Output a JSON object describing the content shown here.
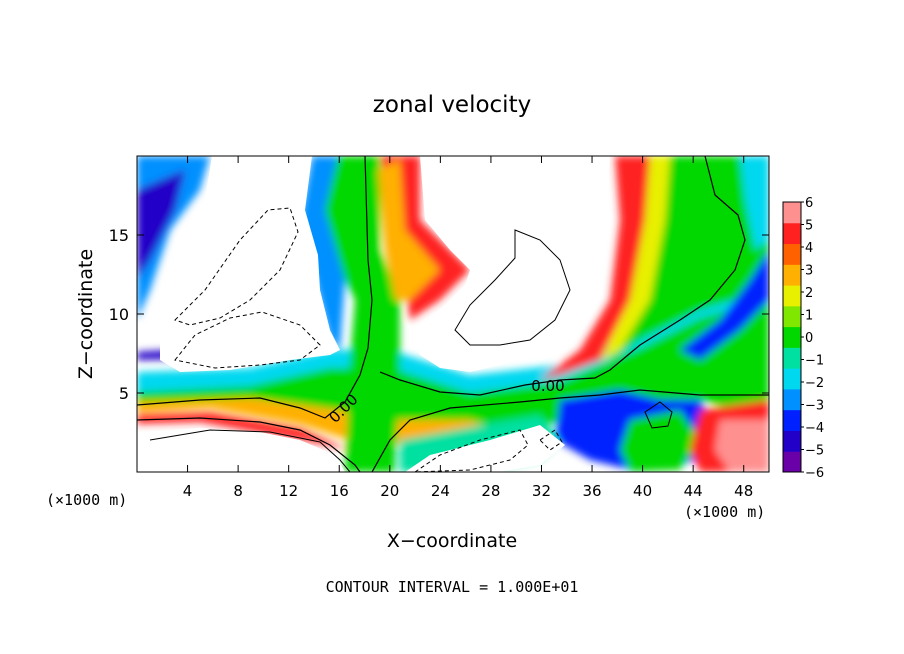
{
  "chart_data": {
    "type": "heatmap",
    "title": "zonal velocity",
    "xlabel": "X−coordinate",
    "ylabel": "Z−coordinate",
    "x_unit_left": "(×1000 m)",
    "x_unit_right": "(×1000 m)",
    "xlim": [
      0,
      50
    ],
    "ylim": [
      0,
      20
    ],
    "x_ticks": [
      4,
      8,
      12,
      16,
      20,
      24,
      28,
      32,
      36,
      40,
      44,
      48
    ],
    "x_tick_labels": [
      "4",
      "8",
      "12",
      "16",
      "20",
      "24",
      "28",
      "32",
      "36",
      "40",
      "44",
      "48"
    ],
    "y_ticks": [
      5,
      10,
      15
    ],
    "y_tick_labels": [
      "5",
      "10",
      "15"
    ],
    "colorbar": {
      "min": -6,
      "max": 6,
      "labels": [
        "6",
        "5",
        "4",
        "3",
        "2",
        "1",
        "0",
        "−1",
        "−2",
        "−3",
        "−4",
        "−5",
        "−6"
      ],
      "colors": [
        "#6a00a8",
        "#2200c8",
        "#0020ff",
        "#0090ff",
        "#00d8f0",
        "#00e0a0",
        "#00d800",
        "#80e800",
        "#e8f000",
        "#ffb000",
        "#ff6000",
        "#ff2020",
        "#ff9090"
      ]
    },
    "contour_labels": [
      "0.00",
      "0.00"
    ],
    "footer": "CONTOUR INTERVAL = 1.000E+01",
    "grid": false,
    "legend": "right colorbar"
  }
}
